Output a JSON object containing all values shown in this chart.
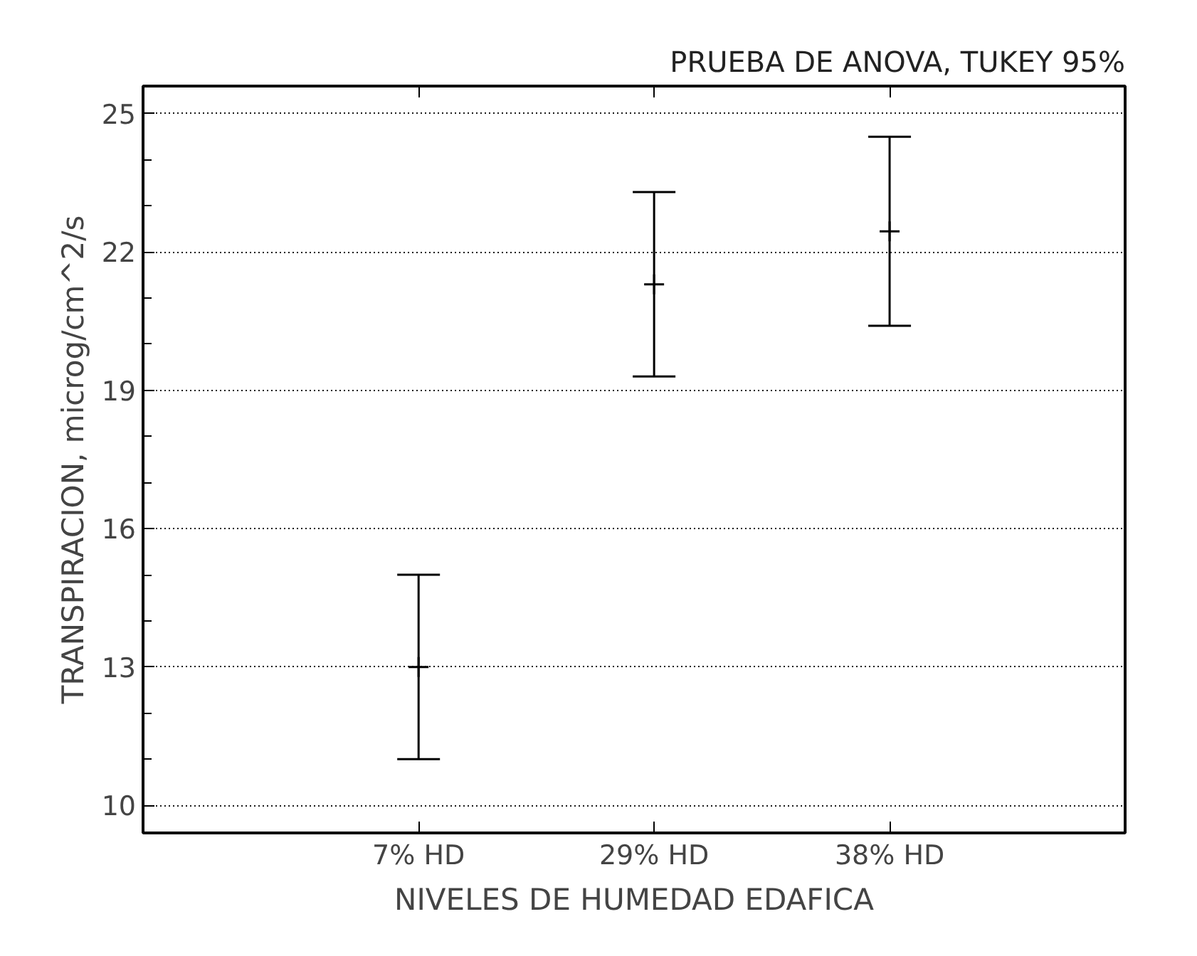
{
  "chart_data": {
    "type": "scatter",
    "title": "PRUEBA DE ANOVA, TUKEY 95%",
    "xlabel": "NIVELES DE HUMEDAD EDAFICA",
    "ylabel": "TRANSPIRACION, microg/cm^2/s",
    "categories": [
      "7% HD",
      "29% HD",
      "38% HD"
    ],
    "values": [
      13.0,
      21.3,
      22.45
    ],
    "errors": [
      [
        11.0,
        15.0
      ],
      [
        19.3,
        23.3
      ],
      [
        20.4,
        24.5
      ]
    ],
    "color": "#000000",
    "ylim": [
      9.4,
      25.6
    ],
    "yticks": [
      10,
      13,
      16,
      19,
      22,
      25
    ],
    "grid": "y",
    "marker": "cross"
  }
}
